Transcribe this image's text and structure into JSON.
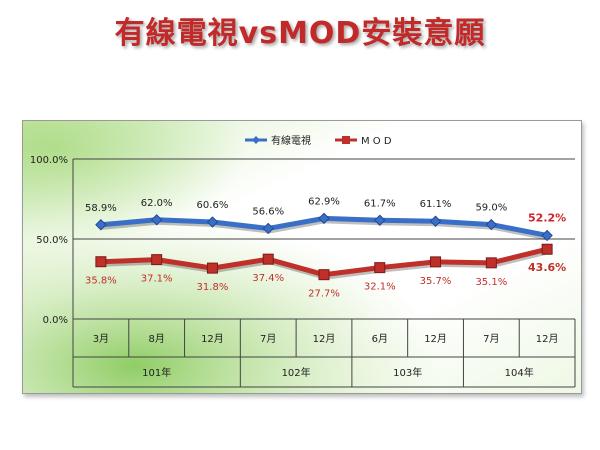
{
  "title": "有線電視vsMOD安裝意願",
  "colors": {
    "cable": "#3a6fc8",
    "mod": "#c0302a",
    "grid_bg_top": "#ffffff",
    "grid_bg_green": "#a8d878"
  },
  "chart_data": {
    "type": "line",
    "categories": [
      "3月",
      "8月",
      "12月",
      "7月",
      "12月",
      "6月",
      "12月",
      "7月",
      "12月"
    ],
    "groups": [
      {
        "label": "101年",
        "span": 3
      },
      {
        "label": "102年",
        "span": 2
      },
      {
        "label": "103年",
        "span": 2
      },
      {
        "label": "104年",
        "span": 2
      }
    ],
    "ylim": [
      0,
      100
    ],
    "yticks": [
      "0.0%",
      "50.0%",
      "100.0%"
    ],
    "legend_position": "top-center",
    "series": [
      {
        "name": "有線電視",
        "values": [
          58.9,
          62.0,
          60.6,
          56.6,
          62.9,
          61.7,
          61.1,
          59.0,
          52.2
        ],
        "labels": [
          "58.9%",
          "62.0%",
          "60.6%",
          "56.6%",
          "62.9%",
          "61.7%",
          "61.1%",
          "59.0%",
          "52.2%"
        ]
      },
      {
        "name": "M O D",
        "values": [
          35.8,
          37.1,
          31.8,
          37.4,
          27.7,
          32.1,
          35.7,
          35.1,
          43.6
        ],
        "labels": [
          "35.8%",
          "37.1%",
          "31.8%",
          "37.4%",
          "27.7%",
          "32.1%",
          "35.7%",
          "35.1%",
          "43.6%"
        ]
      }
    ]
  }
}
